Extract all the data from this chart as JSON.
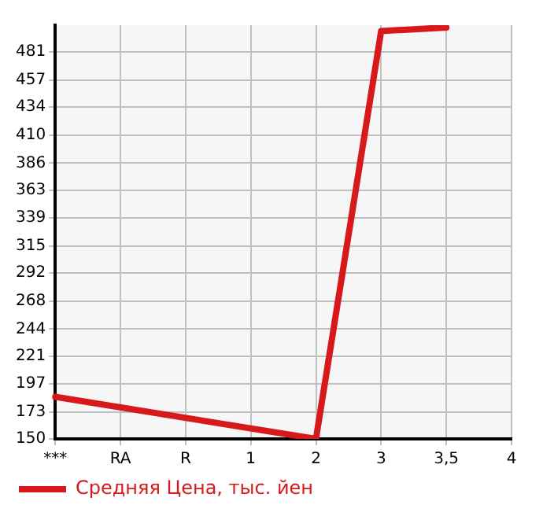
{
  "chart_data": {
    "type": "line",
    "categories": [
      "***",
      "RA",
      "R",
      "1",
      "2",
      "3",
      "3,5",
      "4"
    ],
    "series": [
      {
        "name": "Средняя Цена, тыс. йен",
        "color": "#d7191c",
        "values": [
          186,
          null,
          null,
          null,
          150,
          499,
          502,
          null
        ]
      }
    ],
    "ylim": [
      150,
      504
    ],
    "yticks": [
      150,
      173,
      197,
      221,
      244,
      268,
      292,
      315,
      339,
      363,
      386,
      410,
      434,
      457,
      481
    ],
    "grid": true,
    "legend": "bottom",
    "marker": "none",
    "line_style": "solid"
  }
}
